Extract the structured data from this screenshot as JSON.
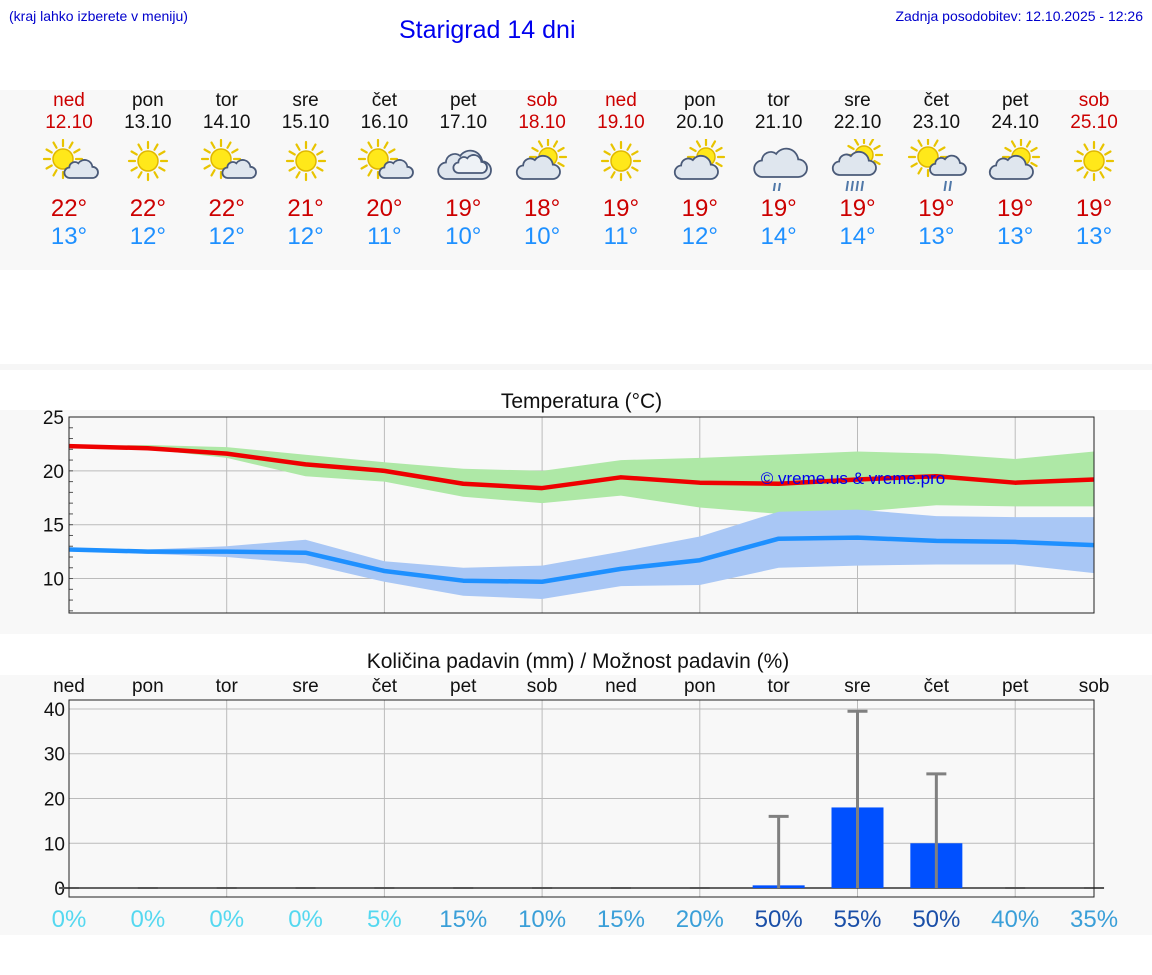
{
  "header": {
    "left_note": "(kraj lahko izberete v meniju)",
    "title": "Starigrad 14 dni",
    "updated": "Zadnja posodobitev: 12.10.2025 - 12:26"
  },
  "days": [
    {
      "name": "ned",
      "date": "12.10",
      "weekend": true,
      "icon": "sun-cloud-icon",
      "high": "22°",
      "low": "13°"
    },
    {
      "name": "pon",
      "date": "13.10",
      "weekend": false,
      "icon": "sun-icon",
      "high": "22°",
      "low": "12°"
    },
    {
      "name": "tor",
      "date": "14.10",
      "weekend": false,
      "icon": "sun-cloud-icon",
      "high": "22°",
      "low": "12°"
    },
    {
      "name": "sre",
      "date": "15.10",
      "weekend": false,
      "icon": "sun-icon",
      "high": "21°",
      "low": "12°"
    },
    {
      "name": "čet",
      "date": "16.10",
      "weekend": false,
      "icon": "sun-cloud-icon",
      "high": "20°",
      "low": "11°"
    },
    {
      "name": "pet",
      "date": "17.10",
      "weekend": false,
      "icon": "cloud-icon",
      "high": "19°",
      "low": "10°"
    },
    {
      "name": "sob",
      "date": "18.10",
      "weekend": true,
      "icon": "cloud-sun-icon",
      "high": "18°",
      "low": "10°"
    },
    {
      "name": "ned",
      "date": "19.10",
      "weekend": true,
      "icon": "sun-icon",
      "high": "19°",
      "low": "11°"
    },
    {
      "name": "pon",
      "date": "20.10",
      "weekend": false,
      "icon": "cloud-sun-icon",
      "high": "19°",
      "low": "12°"
    },
    {
      "name": "tor",
      "date": "21.10",
      "weekend": false,
      "icon": "cloud-rain-icon",
      "high": "19°",
      "low": "14°"
    },
    {
      "name": "sre",
      "date": "22.10",
      "weekend": false,
      "icon": "cloud-sun-heavy-rain-icon",
      "high": "19°",
      "low": "14°"
    },
    {
      "name": "čet",
      "date": "23.10",
      "weekend": false,
      "icon": "sun-cloud-rain-icon",
      "high": "19°",
      "low": "13°"
    },
    {
      "name": "pet",
      "date": "24.10",
      "weekend": false,
      "icon": "cloud-sun-icon",
      "high": "19°",
      "low": "13°"
    },
    {
      "name": "sob",
      "date": "25.10",
      "weekend": true,
      "icon": "sun-icon",
      "high": "19°",
      "low": "13°"
    }
  ],
  "colors": {
    "high_line": "#ee0000",
    "high_band": "#aee8a6",
    "low_line": "#1e90ff",
    "low_band": "#a9c7f5",
    "bar": "#0050ff",
    "whisker": "#808080",
    "pct_light": "#55d8f0",
    "pct_mid": "#3a9fd8",
    "pct_dark": "#1a4fa8"
  },
  "chart_data": [
    {
      "type": "line",
      "title": "Temperatura (°C)",
      "watermark": "© vreme.us & vreme.pro",
      "ylim": [
        6.8,
        25
      ],
      "yticks": [
        10,
        15,
        20,
        25
      ],
      "series": [
        {
          "name": "max",
          "values": [
            22.3,
            22.1,
            21.6,
            20.6,
            20.0,
            18.8,
            18.4,
            19.4,
            18.9,
            18.8,
            19.2,
            19.5,
            18.9,
            19.2
          ],
          "band_low": [
            22.3,
            22.0,
            21.2,
            19.5,
            19.0,
            17.6,
            17.0,
            17.7,
            16.6,
            16.0,
            16.2,
            16.8,
            16.7,
            16.7
          ],
          "band_high": [
            22.3,
            22.4,
            22.2,
            21.5,
            20.8,
            20.2,
            20.0,
            21.0,
            21.2,
            21.5,
            21.8,
            21.6,
            21.1,
            21.8
          ]
        },
        {
          "name": "min",
          "values": [
            12.7,
            12.5,
            12.5,
            12.4,
            10.7,
            9.8,
            9.7,
            10.9,
            11.7,
            13.7,
            13.8,
            13.5,
            13.4,
            13.1
          ],
          "band_low": [
            12.6,
            12.3,
            12.0,
            11.4,
            9.7,
            8.4,
            8.1,
            9.3,
            9.4,
            11.0,
            11.2,
            11.3,
            11.3,
            10.5
          ],
          "band_high": [
            12.8,
            12.7,
            13.0,
            13.6,
            11.6,
            11.0,
            11.2,
            12.5,
            13.9,
            16.2,
            16.4,
            15.8,
            15.7,
            15.7
          ]
        }
      ]
    },
    {
      "type": "bar",
      "title": "Količina padavin (mm) / Možnost padavin (%)",
      "categories": [
        "ned",
        "pon",
        "tor",
        "sre",
        "čet",
        "pet",
        "sob",
        "ned",
        "pon",
        "tor",
        "sre",
        "čet",
        "pet",
        "sob"
      ],
      "ylim": [
        -2,
        42
      ],
      "yticks": [
        0,
        10,
        20,
        30,
        40
      ],
      "values": [
        0,
        0,
        0,
        0,
        0,
        0,
        0,
        0,
        0,
        0.6,
        18,
        10,
        0,
        0
      ],
      "whisker_max": [
        0,
        0,
        0,
        0,
        0,
        0,
        0,
        0,
        0,
        16,
        39.5,
        25.5,
        0,
        0
      ],
      "probability": [
        "0%",
        "0%",
        "0%",
        "0%",
        "5%",
        "15%",
        "10%",
        "15%",
        "20%",
        "50%",
        "55%",
        "50%",
        "40%",
        "35%"
      ],
      "probability_values": [
        0,
        0,
        0,
        0,
        5,
        15,
        10,
        15,
        20,
        50,
        55,
        50,
        40,
        35
      ]
    }
  ]
}
